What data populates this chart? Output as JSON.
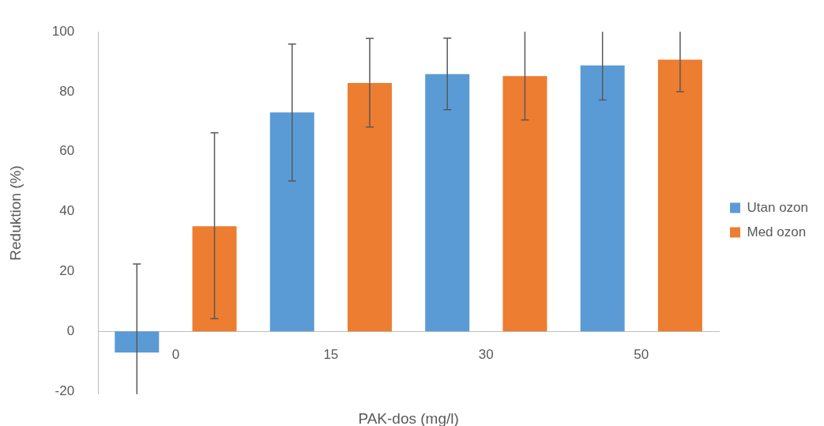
{
  "chart_data": {
    "type": "bar",
    "xlabel": "PAK-dos (mg/l)",
    "ylabel": "Reduktion (%)",
    "categories": [
      "0",
      "15",
      "30",
      "50"
    ],
    "series": [
      {
        "name": "Utan ozon",
        "color": "#5b9bd5",
        "values": [
          -7.1,
          73.1,
          85.9,
          88.8
        ],
        "errors": [
          [
            -21,
            22.5
          ],
          [
            50.2,
            95.9
          ],
          [
            74.0,
            97.9
          ],
          [
            77.2,
            100
          ]
        ]
      },
      {
        "name": "Med ozon",
        "color": "#ed7d31",
        "values": [
          35.1,
          82.9,
          85.2,
          90.7
        ],
        "errors": [
          [
            4.2,
            66.3
          ],
          [
            68.2,
            97.8
          ],
          [
            70.6,
            100
          ],
          [
            80.0,
            100
          ]
        ]
      }
    ],
    "ylim": [
      -21,
      100
    ],
    "yticks": [
      -20,
      0,
      20,
      40,
      60,
      80,
      100
    ],
    "grid": false,
    "legend": "right"
  }
}
